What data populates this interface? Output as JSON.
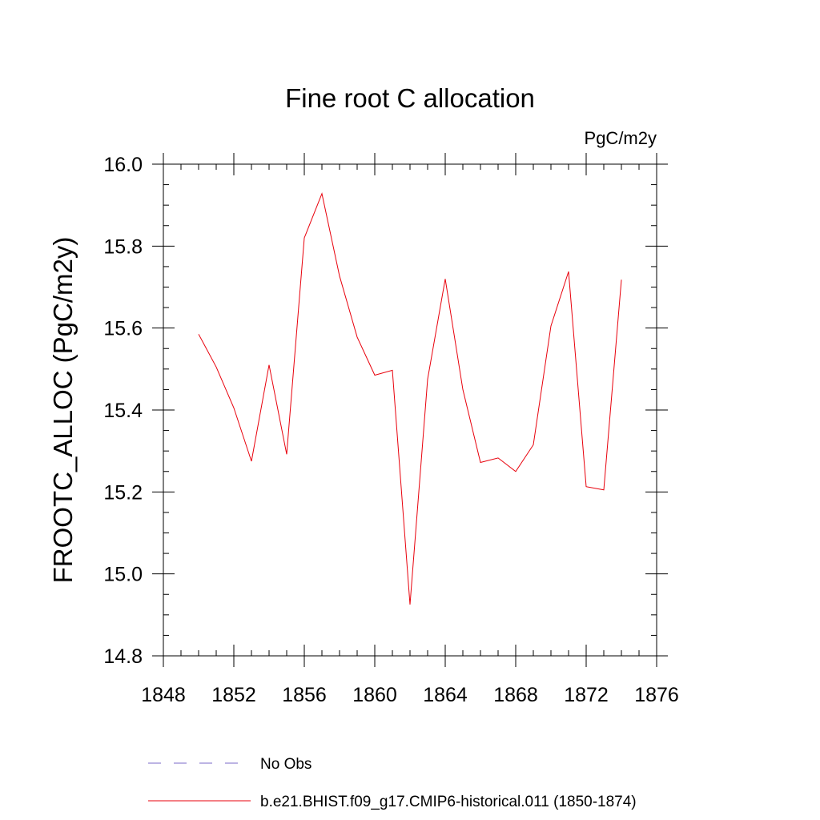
{
  "chart_data": {
    "type": "line",
    "title": "Fine root C allocation",
    "units_label": "PgC/m2y",
    "ylabel": "FROOTC_ALLOC  (PgC/m2y)",
    "xlabel": "",
    "xlim": [
      1848,
      1876
    ],
    "ylim": [
      14.8,
      16.0
    ],
    "x_ticks": [
      "1848",
      "1852",
      "1856",
      "1860",
      "1864",
      "1868",
      "1872",
      "1876"
    ],
    "y_ticks": [
      "14.8",
      "15.0",
      "15.2",
      "15.4",
      "15.6",
      "15.8",
      "16.0"
    ],
    "grid": false,
    "legend_position": "bottom",
    "series": [
      {
        "name": "No Obs",
        "color": "#7b68c8",
        "style": "dashed",
        "x": [],
        "y": []
      },
      {
        "name": "b.e21.BHIST.f09_g17.CMIP6-historical.011 (1850-1874)",
        "color": "#e8000b",
        "style": "solid",
        "x": [
          1850,
          1851,
          1852,
          1853,
          1854,
          1855,
          1856,
          1857,
          1858,
          1859,
          1860,
          1861,
          1862,
          1863,
          1864,
          1865,
          1866,
          1867,
          1868,
          1869,
          1870,
          1871,
          1872,
          1873,
          1874
        ],
        "y": [
          15.585,
          15.505,
          15.405,
          15.275,
          15.51,
          15.292,
          15.82,
          15.928,
          15.727,
          15.578,
          15.485,
          15.497,
          14.925,
          15.475,
          15.72,
          15.45,
          15.272,
          15.283,
          15.25,
          15.315,
          15.605,
          15.738,
          15.213,
          15.205,
          15.718
        ]
      }
    ]
  }
}
